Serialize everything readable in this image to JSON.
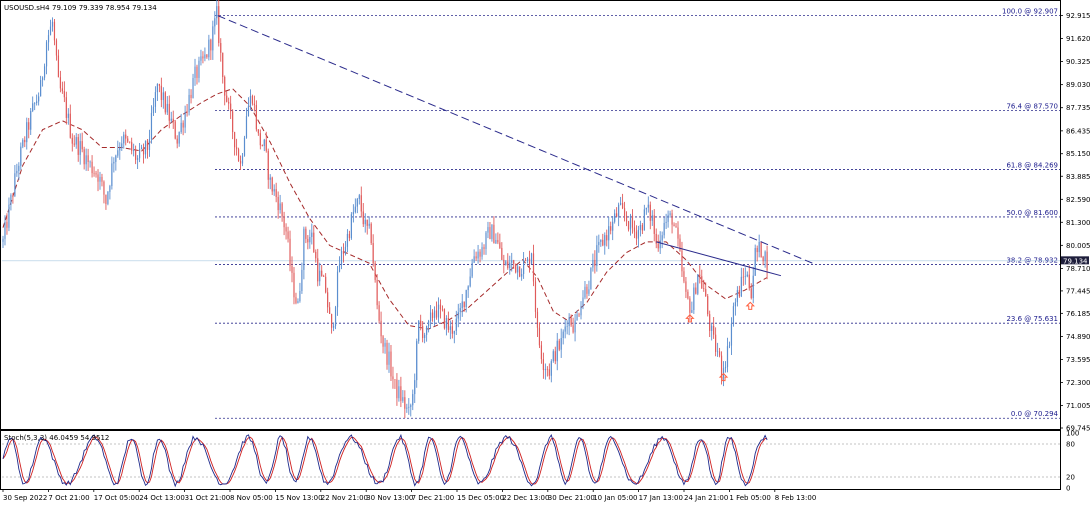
{
  "chart_data": {
    "type": "candlestick",
    "title": "USOUSD.sH4",
    "ohlc_readout": "79.109 79.339 78.954 79.134",
    "price_axis": {
      "ylim": [
        69.745,
        93.56
      ],
      "ticks": [
        "92.915",
        "91.620",
        "90.325",
        "89.030",
        "87.735",
        "86.435",
        "85.150",
        "83.885",
        "82.590",
        "81.300",
        "80.005",
        "78.710",
        "77.445",
        "76.185",
        "74.890",
        "73.595",
        "72.300",
        "71.005",
        "69.745"
      ]
    },
    "current_price": "79.134",
    "time_axis": {
      "labels": [
        "30 Sep 2022",
        "7 Oct 21:00",
        "17 Oct 05:00",
        "24 Oct 13:00",
        "31 Oct 21:00",
        "8 Nov 05:00",
        "15 Nov 13:00",
        "22 Nov 21:00",
        "30 Nov 13:00",
        "7 Dec 21:00",
        "15 Dec 05:00",
        "22 Dec 13:00",
        "30 Dec 21:00",
        "10 Jan 05:00",
        "17 Jan 13:00",
        "24 Jan 21:00",
        "1 Feb 05:00",
        "8 Feb 13:00"
      ],
      "bar_range": [
        0,
        780
      ]
    },
    "fibonacci_levels": [
      {
        "label": "100.0 @ 92.907",
        "price": 92.907
      },
      {
        "label": "76.4 @ 87.570",
        "price": 87.57
      },
      {
        "label": "61.8 @ 84.269",
        "price": 84.269
      },
      {
        "label": "50.0 @ 81.600",
        "price": 81.6
      },
      {
        "label": "38.2 @ 78.932",
        "price": 78.932
      },
      {
        "label": "23.6 @ 75.631",
        "price": 75.631
      },
      {
        "label": "0.0 @ 70.294",
        "price": 70.294
      }
    ],
    "price_path": [
      [
        0,
        80.2
      ],
      [
        8,
        82.5
      ],
      [
        15,
        84.5
      ],
      [
        22,
        86.0
      ],
      [
        30,
        87.6
      ],
      [
        38,
        88.8
      ],
      [
        44,
        91.5
      ],
      [
        50,
        92.5
      ],
      [
        56,
        89.0
      ],
      [
        62,
        88.0
      ],
      [
        70,
        86.0
      ],
      [
        78,
        85.5
      ],
      [
        88,
        84.5
      ],
      [
        96,
        84.0
      ],
      [
        104,
        82.5
      ],
      [
        112,
        85.0
      ],
      [
        120,
        86.0
      ],
      [
        128,
        85.5
      ],
      [
        136,
        84.8
      ],
      [
        146,
        85.5
      ],
      [
        156,
        89.0
      ],
      [
        166,
        87.5
      ],
      [
        176,
        86.0
      ],
      [
        184,
        87.5
      ],
      [
        194,
        89.5
      ],
      [
        204,
        90.5
      ],
      [
        210,
        91.5
      ],
      [
        216,
        92.907
      ],
      [
        222,
        89.5
      ],
      [
        228,
        87.5
      ],
      [
        234,
        86.0
      ],
      [
        240,
        84.5
      ],
      [
        246,
        87.5
      ],
      [
        252,
        88.5
      ],
      [
        258,
        86.0
      ],
      [
        264,
        85.5
      ],
      [
        270,
        83.5
      ],
      [
        278,
        82.5
      ],
      [
        286,
        80.8
      ],
      [
        292,
        78.0
      ],
      [
        298,
        76.5
      ],
      [
        304,
        80.5
      ],
      [
        312,
        80.5
      ],
      [
        318,
        78.5
      ],
      [
        326,
        77.5
      ],
      [
        332,
        75.0
      ],
      [
        340,
        79.0
      ],
      [
        348,
        80.5
      ],
      [
        354,
        81.8
      ],
      [
        360,
        82.5
      ],
      [
        366,
        81.0
      ],
      [
        372,
        80.5
      ],
      [
        378,
        76.5
      ],
      [
        384,
        74.5
      ],
      [
        390,
        73.5
      ],
      [
        396,
        72.0
      ],
      [
        402,
        71.5
      ],
      [
        410,
        70.5
      ],
      [
        414,
        71.5
      ],
      [
        420,
        75.5
      ],
      [
        428,
        75.0
      ],
      [
        436,
        76.5
      ],
      [
        444,
        76.0
      ],
      [
        452,
        75.2
      ],
      [
        460,
        75.8
      ],
      [
        468,
        77.5
      ],
      [
        476,
        79.5
      ],
      [
        484,
        79.8
      ],
      [
        492,
        80.8
      ],
      [
        498,
        80.5
      ],
      [
        506,
        78.8
      ],
      [
        514,
        79.0
      ],
      [
        522,
        78.8
      ],
      [
        530,
        79.0
      ],
      [
        534,
        79.8
      ],
      [
        540,
        75.0
      ],
      [
        546,
        73.5
      ],
      [
        552,
        73.0
      ],
      [
        558,
        74.0
      ],
      [
        564,
        74.5
      ],
      [
        570,
        76.0
      ],
      [
        578,
        75.5
      ],
      [
        584,
        77.0
      ],
      [
        592,
        78.0
      ],
      [
        600,
        79.5
      ],
      [
        608,
        80.5
      ],
      [
        616,
        81.2
      ],
      [
        622,
        82.0
      ],
      [
        630,
        81.5
      ],
      [
        638,
        80.8
      ],
      [
        644,
        81.0
      ],
      [
        650,
        82.0
      ],
      [
        656,
        81.5
      ],
      [
        660,
        80.0
      ],
      [
        668,
        81.2
      ],
      [
        676,
        81.6
      ],
      [
        682,
        80.0
      ],
      [
        690,
        77.0
      ],
      [
        696,
        76.5
      ],
      [
        702,
        78.5
      ],
      [
        708,
        77.5
      ],
      [
        714,
        75.5
      ],
      [
        718,
        74.5
      ],
      [
        722,
        74.0
      ],
      [
        726,
        73.0
      ],
      [
        732,
        74.0
      ],
      [
        738,
        76.5
      ],
      [
        744,
        77.5
      ],
      [
        750,
        78.5
      ],
      [
        756,
        77.5
      ],
      [
        760,
        79.5
      ],
      [
        766,
        79.8
      ],
      [
        772,
        79.134
      ]
    ],
    "moving_average": [
      [
        0,
        81.0
      ],
      [
        20,
        84.5
      ],
      [
        40,
        86.5
      ],
      [
        60,
        87.0
      ],
      [
        80,
        86.5
      ],
      [
        100,
        85.5
      ],
      [
        120,
        85.5
      ],
      [
        140,
        85.3
      ],
      [
        160,
        86.5
      ],
      [
        180,
        87.3
      ],
      [
        200,
        88.0
      ],
      [
        216,
        88.5
      ],
      [
        232,
        88.8
      ],
      [
        250,
        87.8
      ],
      [
        270,
        85.8
      ],
      [
        290,
        83.5
      ],
      [
        310,
        81.5
      ],
      [
        330,
        80.0
      ],
      [
        350,
        79.5
      ],
      [
        370,
        79.0
      ],
      [
        390,
        77.0
      ],
      [
        410,
        75.5
      ],
      [
        430,
        75.3
      ],
      [
        450,
        75.8
      ],
      [
        470,
        76.5
      ],
      [
        490,
        77.5
      ],
      [
        510,
        78.5
      ],
      [
        525,
        79.2
      ],
      [
        540,
        78.2
      ],
      [
        556,
        76.3
      ],
      [
        570,
        75.8
      ],
      [
        590,
        76.8
      ],
      [
        610,
        78.5
      ],
      [
        630,
        79.6
      ],
      [
        650,
        80.2
      ],
      [
        670,
        80.2
      ],
      [
        690,
        79.2
      ],
      [
        710,
        77.8
      ],
      [
        730,
        77.0
      ],
      [
        750,
        77.5
      ],
      [
        772,
        78.2
      ]
    ],
    "trendlines": [
      {
        "from": [
          217,
          92.907
        ],
        "to": [
          818,
          79.0
        ],
        "style": "dashed"
      },
      {
        "from": [
          660,
          80.2
        ],
        "to": [
          786,
          78.3
        ],
        "style": "solid"
      }
    ],
    "arrows": [
      {
        "x": 694,
        "price": 76.1
      },
      {
        "x": 728,
        "price": 72.8
      },
      {
        "x": 755,
        "price": 76.8
      }
    ],
    "stochastic": {
      "label": "Stoch(5,3,3) 46.0459 54.9512",
      "ylim": [
        0,
        100
      ],
      "ticks": [
        "100",
        "80",
        "20",
        "0"
      ],
      "levels": [
        80,
        20
      ]
    },
    "colors": {
      "bull": "#5b8ecf",
      "bear": "#e05a5a",
      "moving_average": "#a52a2a",
      "trendline_dashed": "#2b2b8c",
      "trendline_solid": "#2b2b8c",
      "fib_line": "#2b2b8c",
      "stoch_main": "#1e2a8c",
      "stoch_signal": "#d02020",
      "current_price_bg": "#1e1e3c",
      "arrow": "#ff6040"
    }
  }
}
